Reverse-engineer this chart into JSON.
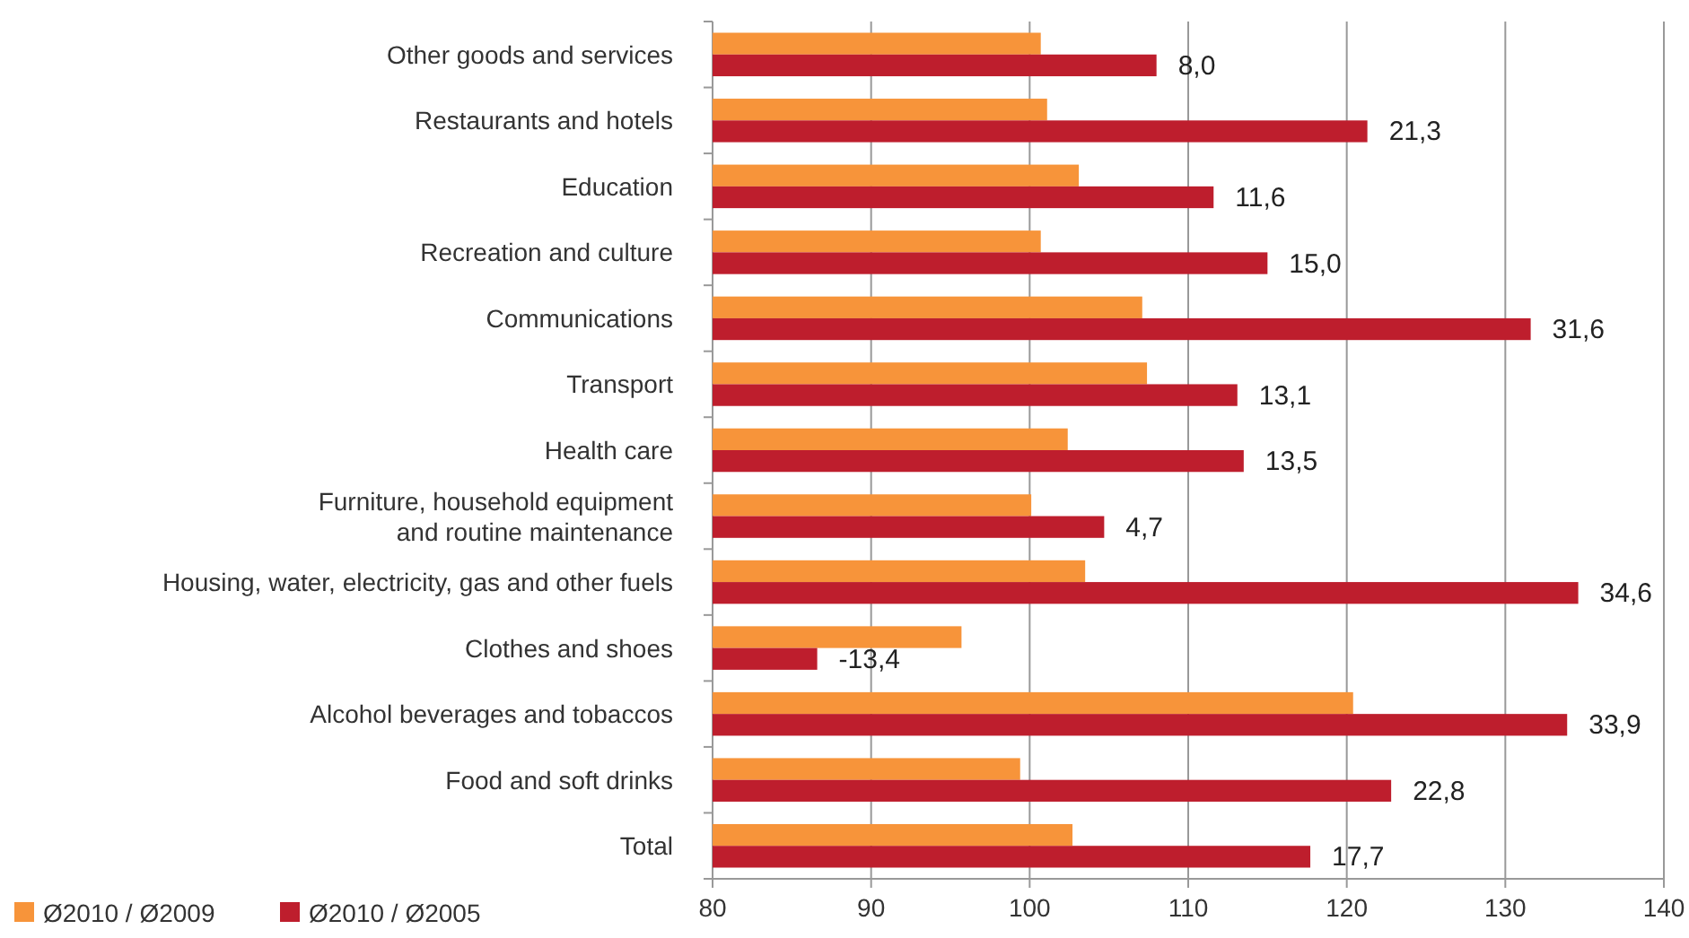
{
  "chart_data": {
    "type": "bar",
    "orientation": "horizontal",
    "categories": [
      "Other goods and services",
      "Restaurants and hotels",
      "Education",
      "Recreation and culture",
      "Communications",
      "Transport",
      "Health care",
      "Furniture, household equipment\nand routine maintenance",
      "Housing, water, electricity, gas and other fuels",
      "Clothes and shoes",
      "Alcohol beverages and tobaccos",
      "Food and soft drinks",
      "Total"
    ],
    "series": [
      {
        "name": "Ø2010 / Ø2009",
        "color": "#f7943a",
        "values": [
          100.7,
          101.1,
          103.1,
          100.7,
          107.1,
          107.4,
          102.4,
          100.1,
          103.5,
          95.7,
          120.4,
          99.4,
          102.7
        ]
      },
      {
        "name": "Ø2010 / Ø2005",
        "color": "#be1e2d",
        "values": [
          108.0,
          121.3,
          111.6,
          115.0,
          131.6,
          113.1,
          113.5,
          104.7,
          134.6,
          86.6,
          133.9,
          122.8,
          117.7
        ]
      }
    ],
    "annotations": [
      {
        "text": "8,0",
        "x": 108.0,
        "y": "Other goods and services"
      },
      {
        "text": "21,3",
        "x": 121.3,
        "y": "Restaurants and hotels"
      },
      {
        "text": "11,6",
        "x": 111.6,
        "y": "Education"
      },
      {
        "text": "15,0",
        "x": 115.0,
        "y": "Recreation and culture"
      },
      {
        "text": "31,6",
        "x": 131.6,
        "y": "Communications"
      },
      {
        "text": "13,1",
        "x": 113.1,
        "y": "Transport"
      },
      {
        "text": "13,5",
        "x": 113.5,
        "y": "Health care"
      },
      {
        "text": "4,7",
        "x": 104.7,
        "y": "Furniture, household equipment\nand routine maintenance"
      },
      {
        "text": "34,6",
        "x": 134.6,
        "y": "Housing, water, electricity, gas and other fuels"
      },
      {
        "text": "-13,4",
        "x": 86.6,
        "y": "Clothes and shoes"
      },
      {
        "text": "33,9",
        "x": 133.9,
        "y": "Alcohol beverages and tobaccos"
      },
      {
        "text": "22,8",
        "x": 122.8,
        "y": "Food and soft drinks"
      },
      {
        "text": "17,7",
        "x": 117.7,
        "y": "Total"
      }
    ],
    "xlim": [
      80,
      140
    ],
    "xticks": [
      80,
      90,
      100,
      110,
      120,
      130,
      140
    ],
    "grid": "x",
    "legend": "bottom left"
  }
}
